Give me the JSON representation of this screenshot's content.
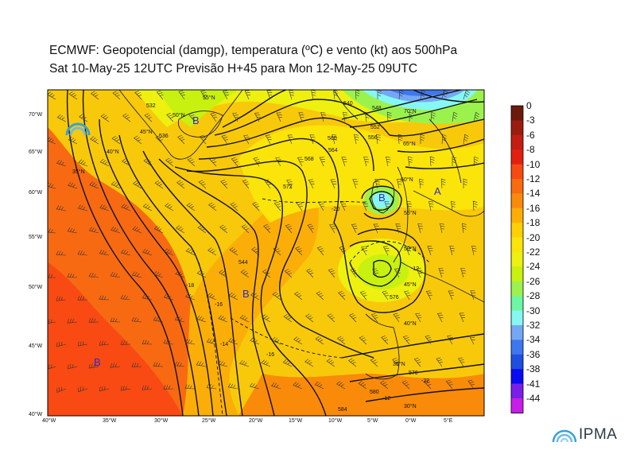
{
  "header": {
    "title_line1": "ECMWF:  Geopotencial (damgp), temperatura (ºC) e vento (kt) aos 500hPa",
    "title_line2": "Sat 10-May-25 12UTC Previsão H+45 para Mon 12-May-25 09UTC"
  },
  "map": {
    "lon_labels": [
      "40°W",
      "35°W",
      "30°W",
      "25°W",
      "20°W",
      "15°W",
      "10°W",
      "5°W",
      "0°W",
      "5°E"
    ],
    "lat_labels": [
      "70°W",
      "65°W",
      "60°W",
      "55°W",
      "50°W",
      "45°W",
      "40°W"
    ],
    "inner_lat_labels": [
      "70°N",
      "65°N",
      "60°N",
      "55°N",
      "50°N",
      "45°N",
      "40°N",
      "35°N",
      "30°N",
      "55°N",
      "50°N",
      "45°N",
      "40°N",
      "35°N"
    ],
    "pressure_centres": [
      "B",
      "B",
      "B",
      "B"
    ],
    "high_centre": "A",
    "temp_labels": [
      "-20",
      "-16",
      "-16",
      "-18",
      "-12",
      "-14",
      "-12",
      "-22"
    ],
    "geopotential_labels": [
      "584",
      "580",
      "576",
      "572",
      "568",
      "564",
      "560",
      "556",
      "552",
      "548",
      "544",
      "540",
      "536",
      "532",
      "576",
      "580",
      "572",
      "564",
      "556",
      "552"
    ]
  },
  "colorbar": {
    "labels": [
      "0",
      "-3",
      "-6",
      "-8",
      "-10",
      "-12",
      "-14",
      "-16",
      "-18",
      "-20",
      "-22",
      "-24",
      "-26",
      "-28",
      "-30",
      "-32",
      "-34",
      "-36",
      "-38",
      "-41",
      "-44"
    ],
    "colors": [
      "#6b1a0c",
      "#9a1d10",
      "#c41e12",
      "#e3200f",
      "#f74a10",
      "#f86b0e",
      "#fa8a0a",
      "#fcae06",
      "#fcd004",
      "#fbe409",
      "#eef00f",
      "#c8f110",
      "#9cf24c",
      "#6cf7a2",
      "#86f7f1",
      "#74a8f5",
      "#3e78f0",
      "#1e4fe0",
      "#0a0af5",
      "#7a1ee8",
      "#c71ee8"
    ]
  },
  "brand": {
    "logo_text": "IPMA"
  }
}
